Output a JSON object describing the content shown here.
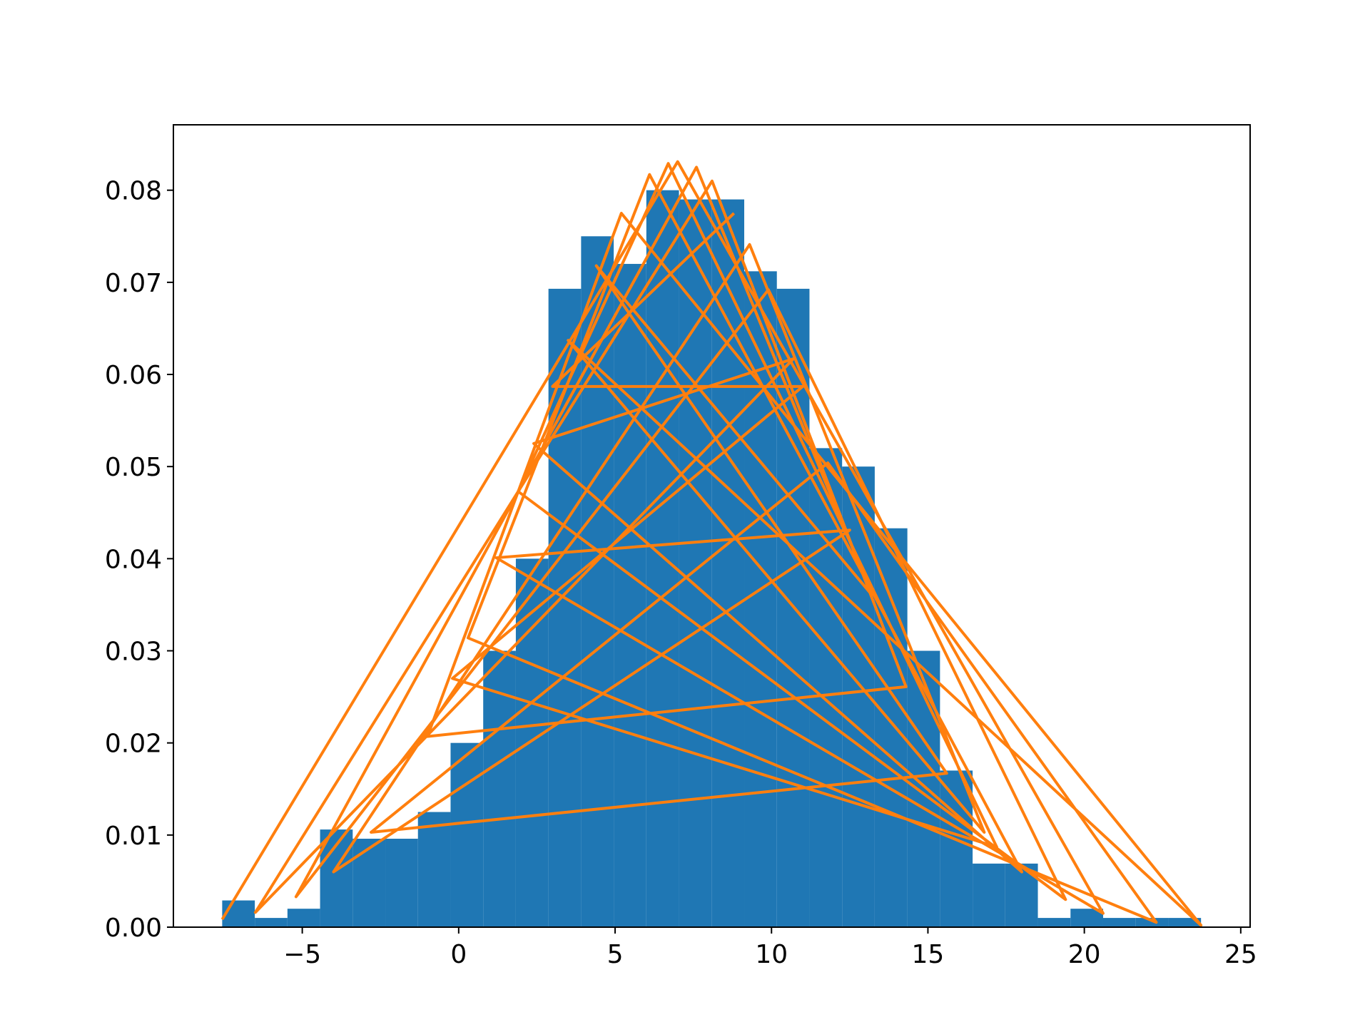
{
  "chart_data": {
    "type": "histogram",
    "bins": [
      -7.56,
      -6.517,
      -5.474,
      -4.431,
      -3.388,
      -2.345,
      -1.302,
      -0.259,
      0.784,
      1.827,
      2.87,
      3.913,
      4.956,
      5.999,
      7.042,
      8.085,
      9.128,
      10.171,
      11.214,
      12.257,
      13.3,
      14.343,
      15.386,
      16.429,
      17.472,
      18.515,
      19.558,
      20.601,
      21.644,
      22.687,
      23.73
    ],
    "values": [
      0.0029,
      0.001,
      0.002,
      0.0106,
      0.0096,
      0.0096,
      0.0125,
      0.02,
      0.03,
      0.04,
      0.0693,
      0.075,
      0.072,
      0.08,
      0.079,
      0.079,
      0.0712,
      0.0693,
      0.052,
      0.05,
      0.0433,
      0.03,
      0.017,
      0.0069,
      0.0069,
      0.001,
      0.002,
      0.001,
      0.001,
      0.001
    ],
    "color": "#1f77b4",
    "line": {
      "x": [
        -7.56,
        7.0,
        20.6,
        1.2,
        12.5,
        -4.0,
        9.3,
        16.8,
        3.5,
        23.73,
        5.2,
        -1.0,
        14.3,
        8.1,
        -6.5,
        10.7,
        2.4,
        18.0,
        6.1,
        0.3,
        22.3,
        11.8,
        -2.8,
        15.6,
        4.4,
        13.2,
        7.6,
        -5.2,
        9.9,
        19.4,
        1.9,
        6.7,
        17.2,
        -0.2,
        11.0,
        3.0,
        8.8
      ],
      "values": [
        0.00084,
        0.0831,
        0.0015,
        0.0401,
        0.0431,
        0.006,
        0.0741,
        0.0103,
        0.0637,
        0.0002,
        0.0775,
        0.0207,
        0.0261,
        0.081,
        0.0016,
        0.0617,
        0.0525,
        0.006,
        0.0817,
        0.0314,
        0.00052,
        0.0504,
        0.0103,
        0.0167,
        0.0718,
        0.0361,
        0.0825,
        0.0033,
        0.0692,
        0.003,
        0.0473,
        0.0829,
        0.0087,
        0.027,
        0.0587,
        0.0587,
        0.0775
      ],
      "color": "#ff7f0e"
    },
    "xlim": [
      -9.12,
      25.3
    ],
    "ylim": [
      0,
      0.0871
    ],
    "xticks": [
      {
        "value": -5,
        "label": "−5"
      },
      0,
      5,
      10,
      15,
      20,
      25
    ],
    "yticks": [
      {
        "value": 0,
        "label": "0.00"
      },
      {
        "value": 0.01,
        "label": "0.01"
      },
      {
        "value": 0.02,
        "label": "0.02"
      },
      {
        "value": 0.03,
        "label": "0.03"
      },
      {
        "value": 0.04,
        "label": "0.04"
      },
      {
        "value": 0.05,
        "label": "0.05"
      },
      {
        "value": 0.06,
        "label": "0.06"
      },
      {
        "value": 0.07,
        "label": "0.07"
      },
      {
        "value": 0.08,
        "label": "0.08"
      }
    ]
  }
}
